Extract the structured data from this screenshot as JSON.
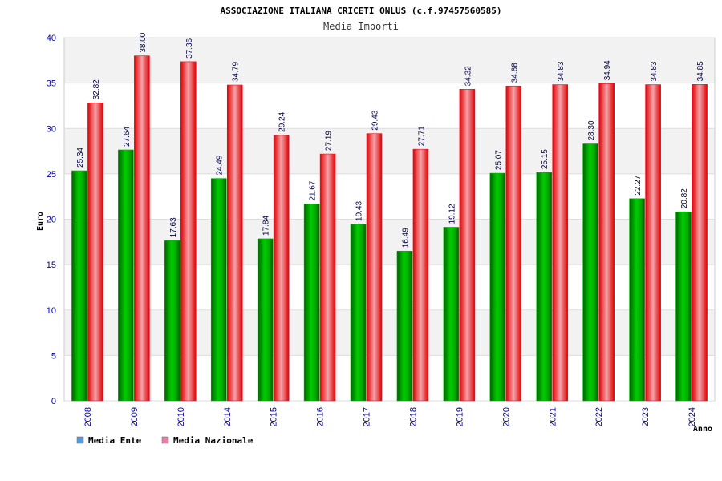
{
  "colors": {
    "ente": "#00b400",
    "nazionale": "#f00a1e",
    "legend_ente": "#5b9bd5",
    "legend_nazionale": "#e87fa8",
    "tick_text": "#0000aa",
    "band": "#f2f2f2",
    "grid": "#dddddd"
  },
  "chart_data": {
    "type": "bar",
    "title": "ASSOCIAZIONE ITALIANA CRICETI ONLUS (c.f.97457560585)",
    "subtitle": "Media Importi",
    "xlabel": "Anno",
    "ylabel": "Euro",
    "ylim": [
      0,
      40
    ],
    "yticks": [
      "0",
      "5",
      "10",
      "15",
      "20",
      "25",
      "30",
      "35",
      "40"
    ],
    "grid": true,
    "legend_position": "bottom-left",
    "categories": [
      "2008",
      "2009",
      "2010",
      "2014",
      "2015",
      "2016",
      "2017",
      "2018",
      "2019",
      "2020",
      "2021",
      "2022",
      "2023",
      "2024"
    ],
    "series": [
      {
        "name": "Media Ente",
        "values": [
          25.34,
          27.64,
          17.63,
          24.49,
          17.84,
          21.67,
          19.43,
          16.49,
          19.12,
          25.07,
          25.15,
          28.3,
          22.27,
          20.82
        ],
        "labels": [
          "25.34",
          "27.64",
          "17.63",
          "24.49",
          "17.84",
          "21.67",
          "19.43",
          "16.49",
          "19.12",
          "25.07",
          "25.15",
          "28.30",
          "22.27",
          "20.82"
        ]
      },
      {
        "name": "Media Nazionale",
        "values": [
          32.82,
          38.0,
          37.36,
          34.79,
          29.24,
          27.19,
          29.43,
          27.71,
          34.32,
          34.68,
          34.83,
          34.94,
          34.83,
          34.85
        ],
        "labels": [
          "32.82",
          "38.00",
          "37.36",
          "34.79",
          "29.24",
          "27.19",
          "29.43",
          "27.71",
          "34.32",
          "34.68",
          "34.83",
          "34.94",
          "34.83",
          "34.85"
        ]
      }
    ]
  }
}
